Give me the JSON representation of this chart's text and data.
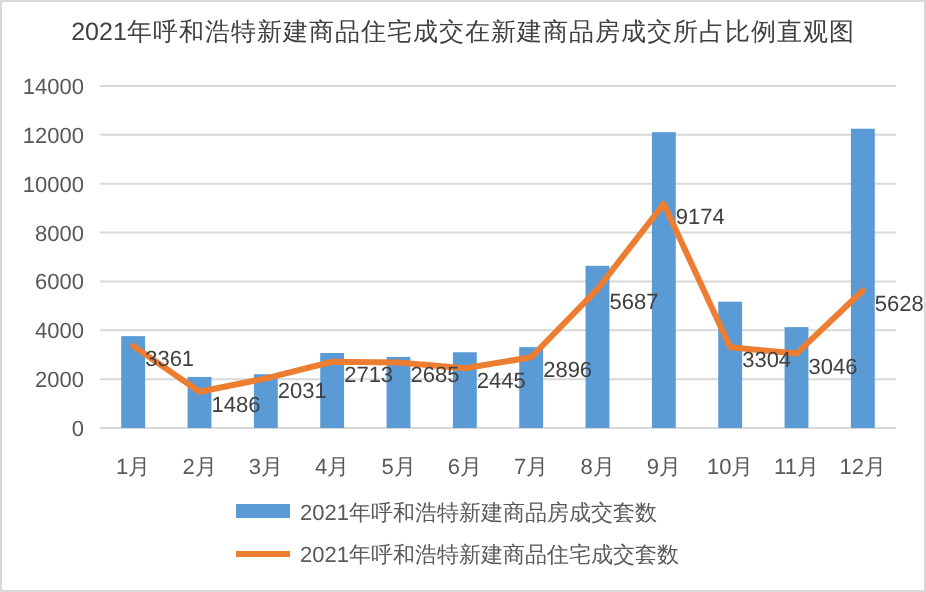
{
  "chart_data": {
    "type": "bar",
    "title": "2021年呼和浩特新建商品住宅成交在新建商品房成交所占比例直观图",
    "categories": [
      "1月",
      "2月",
      "3月",
      "4月",
      "5月",
      "6月",
      "7月",
      "8月",
      "9月",
      "10月",
      "11月",
      "12月"
    ],
    "series": [
      {
        "name": "2021年呼和浩特新建商品房成交套数",
        "color": "#5b9bd5",
        "values": [
          3760,
          2090,
          2200,
          3070,
          2910,
          3100,
          3310,
          6640,
          12110,
          5170,
          4130,
          12250
        ]
      },
      {
        "name": "2021年呼和浩特新建商品住宅成交套数",
        "type": "line",
        "color": "#ed7d31",
        "values": [
          3361,
          1486,
          2031,
          2713,
          2685,
          2445,
          2896,
          5687,
          9174,
          3304,
          3046,
          5628
        ],
        "value_labels": [
          "3361",
          "1486",
          "2031",
          "2713",
          "2685",
          "2445",
          "2896",
          "5687",
          "9174",
          "3304",
          "3046",
          "5628"
        ]
      }
    ],
    "ylim": [
      0,
      14000
    ],
    "yticks": [
      0,
      2000,
      4000,
      6000,
      8000,
      10000,
      12000,
      14000
    ],
    "grid": "y",
    "legend": "bottom"
  }
}
